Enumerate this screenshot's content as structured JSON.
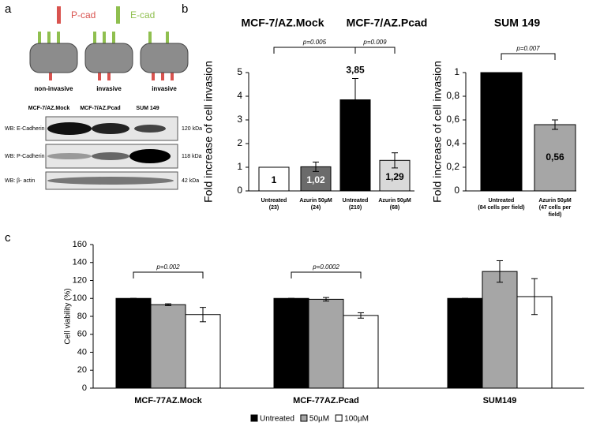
{
  "panel_labels": [
    "a",
    "b",
    "c"
  ],
  "panel_a": {
    "legend": [
      "P-cad",
      "E-cad"
    ],
    "cell_labels": [
      "non-invasive",
      "invasive",
      "invasive"
    ],
    "blot_columns": [
      "MCF-7/AZ.Mock",
      "MCF-7/AZ.Pcad",
      "SUM 149"
    ],
    "blot_rows": [
      {
        "label": "WB: E-Cadherin",
        "size": "120 kDa"
      },
      {
        "label": "WB: P-Cadherin",
        "size": "118 kDa"
      },
      {
        "label": "WB: β- actin",
        "size": "42 kDa"
      }
    ]
  },
  "chart_data": [
    {
      "type": "bar",
      "titles": [
        "MCF-7/AZ.Mock",
        "MCF-7/AZ.Pcad"
      ],
      "y_label": "Fold increase of cell invasion",
      "categories": [
        "Untreated\n(23)",
        "Azurin 50µM\n(24)",
        "Untreated\n(210)",
        "Azurin 50µM\n(68)"
      ],
      "values": [
        1,
        1.02,
        3.85,
        1.29
      ],
      "errors": [
        0,
        0.2,
        0.9,
        0.32
      ],
      "value_labels": [
        "1",
        "1,02",
        "3,85",
        "1,29"
      ],
      "colors": [
        "#ffffff",
        "#6b6b6b",
        "#000000",
        "#d9d9d9"
      ],
      "ylim": [
        0,
        5
      ],
      "yticks": [
        0,
        1,
        2,
        3,
        4,
        5
      ],
      "annotations": [
        "p=0.005",
        "p=0.009"
      ]
    },
    {
      "type": "bar",
      "titles": [
        "SUM 149"
      ],
      "y_label": "Fold increase of cell invasion",
      "categories": [
        "Untreated\n(84 cells per field)",
        "Azurin 50µM\n(47 cells per field)"
      ],
      "values": [
        1,
        0.56
      ],
      "errors": [
        0,
        0.04
      ],
      "value_labels": [
        null,
        "0,56"
      ],
      "colors": [
        "#000000",
        "#a6a6a6"
      ],
      "ylim": [
        0,
        1
      ],
      "yticks": [
        0,
        {
          "value": 0.2,
          "label": "0,2"
        },
        {
          "value": 0.4,
          "label": "0,4"
        },
        {
          "value": 0.6,
          "label": "0,6"
        },
        {
          "value": 0.8,
          "label": "0,8"
        },
        1
      ],
      "annotations": [
        "p=0.007"
      ]
    },
    {
      "type": "grouped_bar",
      "y_label": "Cell viability (%)",
      "categories": [
        "MCF-77AZ.Mock",
        "MCF-77AZ.Pcad",
        "SUM149"
      ],
      "series": [
        {
          "name": "Untreated",
          "color": "#000000",
          "values": [
            100,
            100,
            100
          ],
          "errors": [
            0,
            0,
            0
          ]
        },
        {
          "name": "50µM",
          "color": "#a6a6a6",
          "values": [
            93,
            99,
            130
          ],
          "errors": [
            1,
            2,
            12
          ]
        },
        {
          "name": "100µM",
          "color": "#ffffff",
          "values": [
            82,
            81,
            102
          ],
          "errors": [
            8,
            3,
            20
          ]
        }
      ],
      "ylim": [
        0,
        160
      ],
      "yticks": [
        0,
        20,
        40,
        60,
        80,
        100,
        120,
        140,
        160
      ],
      "annotations": [
        "p=0.002",
        "p=0.0002"
      ]
    }
  ]
}
